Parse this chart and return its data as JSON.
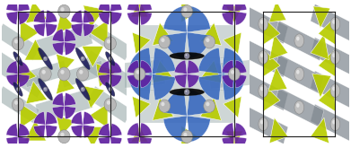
{
  "figure_width": 3.91,
  "figure_height": 1.65,
  "dpi": 100,
  "background_color": "#ffffff",
  "colors": {
    "yellow": "#b8cc00",
    "grey_sphere": "#b8b8b8",
    "purple": "#6020a0",
    "blue": "#3a6abf",
    "black": "#050505",
    "grey_flat": "#9aabab",
    "grey_flat2": "#808890",
    "cell_line": "#202020",
    "navy": "#1a1a5a"
  }
}
